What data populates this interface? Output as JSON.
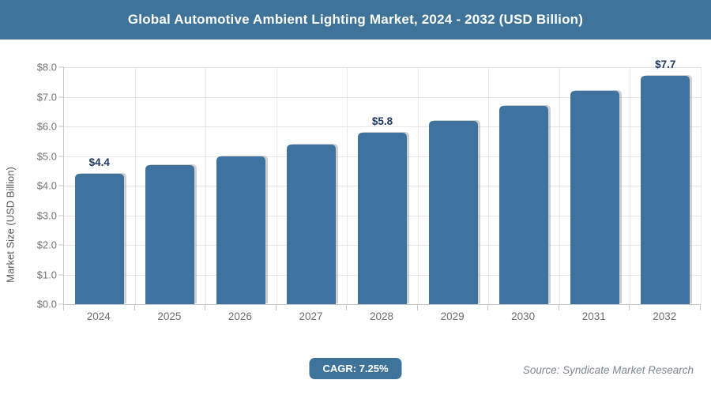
{
  "header": {
    "title": "Global Automotive Ambient Lighting Market, 2024 - 2032 (USD Billion)"
  },
  "chart_data": {
    "type": "bar",
    "title": "Global Automotive Ambient Lighting Market, 2024 - 2032 (USD Billion)",
    "categories": [
      "2024",
      "2025",
      "2026",
      "2027",
      "2028",
      "2029",
      "2030",
      "2031",
      "2032"
    ],
    "values": [
      4.4,
      4.7,
      5.0,
      5.4,
      5.8,
      6.2,
      6.7,
      7.2,
      7.7
    ],
    "data_labels": [
      "$4.4",
      "",
      "",
      "",
      "$5.8",
      "",
      "",
      "",
      "$7.7"
    ],
    "xlabel": "",
    "ylabel": "Market Size (USD Billion)",
    "ylim": [
      0,
      8
    ],
    "ytick_step": 1,
    "ytick_labels": [
      "$0.0",
      "$1.0",
      "$2.0",
      "$3.0",
      "$4.0",
      "$5.0",
      "$6.0",
      "$7.0",
      "$8.0"
    ],
    "grid": true,
    "legend": "none"
  },
  "footer": {
    "cagr_label": "CAGR: 7.25%",
    "source": "Source: Syndicate Market Research"
  },
  "colors": {
    "header_bg": "#3e7499",
    "bar_fill": "#3d739e",
    "badge_bg": "#3e7499",
    "value_label": "#1f3864"
  }
}
